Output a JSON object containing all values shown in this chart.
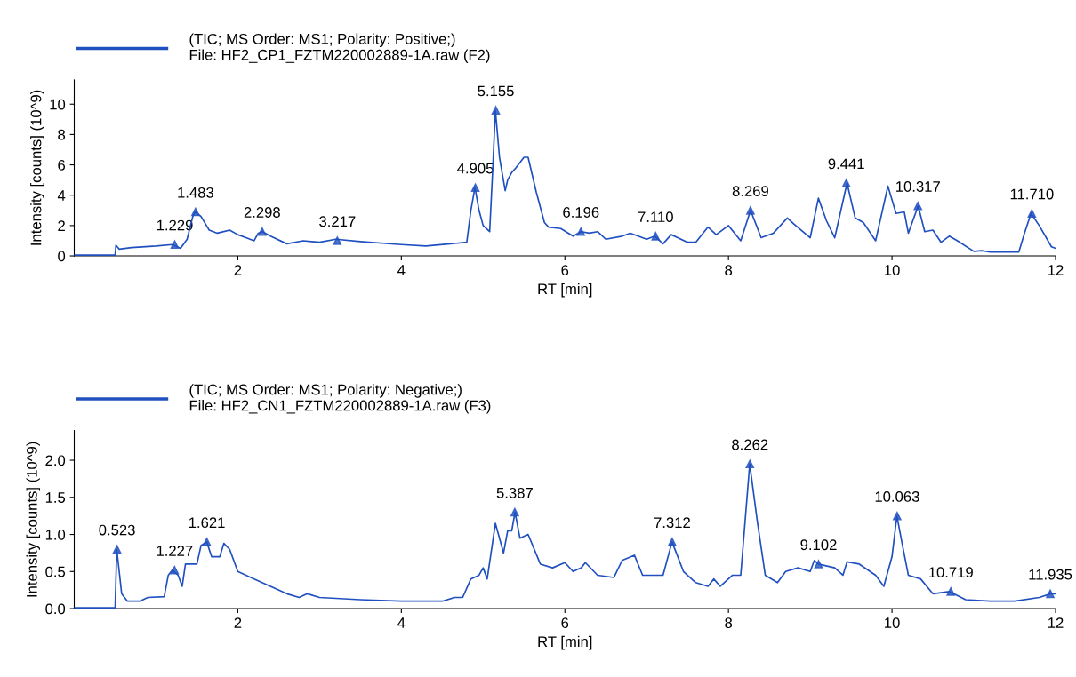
{
  "chart_data": [
    {
      "type": "line",
      "xlabel": "RT [min]",
      "ylabel": "Intensity [counts] (10^9)",
      "xlim": [
        0,
        12
      ],
      "xticks": [
        2,
        4,
        6,
        8,
        10,
        12
      ],
      "ylim": [
        0,
        11.6
      ],
      "yticks": [
        0,
        2,
        4,
        6,
        8,
        10
      ],
      "grid": false,
      "legend": "top left",
      "marker": "none",
      "line_style": "solid",
      "series": [
        {
          "name": "(TIC; MS Order: MS1; Polarity: Positive;)\nFile: HF2_CP1_FZTM220002889-1A.raw (F2)",
          "color": "#2050c0",
          "x": [
            0,
            0.5,
            0.51,
            0.55,
            0.7,
            1.0,
            1.2,
            1.3,
            1.38,
            1.45,
            1.48,
            1.55,
            1.65,
            1.75,
            1.9,
            2.0,
            2.1,
            2.2,
            2.25,
            2.3,
            2.4,
            2.6,
            2.8,
            2.9,
            3.0,
            3.2,
            3.5,
            4.0,
            4.3,
            4.6,
            4.8,
            4.85,
            4.9,
            4.95,
            5.0,
            5.08,
            5.12,
            5.15,
            5.2,
            5.27,
            5.3,
            5.35,
            5.4,
            5.5,
            5.55,
            5.65,
            5.75,
            5.8,
            5.95,
            6.1,
            6.2,
            6.3,
            6.4,
            6.5,
            6.7,
            6.8,
            7.0,
            7.1,
            7.2,
            7.3,
            7.5,
            7.6,
            7.75,
            7.85,
            8.0,
            8.15,
            8.27,
            8.4,
            8.55,
            8.72,
            8.8,
            9.0,
            9.1,
            9.2,
            9.3,
            9.45,
            9.55,
            9.65,
            9.8,
            9.95,
            10.05,
            10.15,
            10.2,
            10.32,
            10.4,
            10.5,
            10.6,
            10.7,
            10.8,
            11.0,
            11.1,
            11.2,
            11.55,
            11.62,
            11.7,
            11.8,
            11.95,
            12.0
          ],
          "values": [
            0.05,
            0.05,
            0.7,
            0.45,
            0.55,
            0.65,
            0.75,
            0.5,
            1.1,
            2.6,
            2.9,
            2.6,
            1.7,
            1.5,
            1.7,
            1.4,
            1.2,
            1.0,
            1.5,
            1.6,
            1.3,
            0.8,
            1.0,
            0.95,
            0.9,
            1.1,
            0.95,
            0.75,
            0.65,
            0.8,
            0.9,
            3.0,
            4.5,
            3.0,
            2.0,
            1.6,
            6.0,
            9.6,
            6.5,
            4.3,
            5.0,
            5.5,
            5.8,
            6.5,
            6.5,
            4.2,
            2.2,
            1.9,
            1.8,
            1.3,
            1.6,
            1.5,
            1.6,
            1.1,
            1.3,
            1.5,
            1.1,
            1.3,
            0.8,
            1.4,
            0.9,
            0.9,
            1.9,
            1.4,
            2.0,
            1.0,
            3.0,
            1.2,
            1.5,
            2.5,
            2.1,
            1.2,
            3.8,
            2.3,
            1.2,
            4.8,
            2.5,
            2.2,
            1.0,
            4.6,
            2.8,
            2.9,
            1.5,
            3.3,
            1.6,
            1.7,
            0.9,
            1.3,
            1.0,
            0.3,
            0.35,
            0.25,
            0.25,
            1.5,
            2.8,
            2.0,
            0.6,
            0.5
          ]
        }
      ],
      "annotations": [
        {
          "text": "1.229",
          "x": 1.229,
          "y": 0.75
        },
        {
          "text": "1.483",
          "x": 1.483,
          "y": 2.9
        },
        {
          "text": "2.298",
          "x": 2.298,
          "y": 1.6
        },
        {
          "text": "3.217",
          "x": 3.217,
          "y": 1.0
        },
        {
          "text": "4.905",
          "x": 4.905,
          "y": 4.5
        },
        {
          "text": "5.155",
          "x": 5.155,
          "y": 9.6
        },
        {
          "text": "6.196",
          "x": 6.196,
          "y": 1.6
        },
        {
          "text": "7.110",
          "x": 7.11,
          "y": 1.3
        },
        {
          "text": "8.269",
          "x": 8.269,
          "y": 3.0
        },
        {
          "text": "9.441",
          "x": 9.441,
          "y": 4.8
        },
        {
          "text": "10.317",
          "x": 10.317,
          "y": 3.3
        },
        {
          "text": "11.710",
          "x": 11.71,
          "y": 2.8
        }
      ]
    },
    {
      "type": "line",
      "xlabel": "RT [min]",
      "ylabel": "Intensity [counts] (10^9)",
      "xlim": [
        0,
        12
      ],
      "xticks": [
        2,
        4,
        6,
        8,
        10,
        12
      ],
      "ylim": [
        0,
        2.4
      ],
      "yticks": [
        {
          "value": 0,
          "label": "0.0"
        },
        0.5,
        {
          "value": 1,
          "label": "1.0"
        },
        1.5,
        {
          "value": 2,
          "label": "2.0"
        }
      ],
      "grid": false,
      "legend": "top left",
      "marker": "none",
      "line_style": "solid",
      "series": [
        {
          "name": "(TIC; MS Order: MS1; Polarity: Negative;)\nFile: HF2_CN1_FZTM220002889-1A.raw (F3)",
          "color": "#2050c0",
          "x": [
            0,
            0.5,
            0.52,
            0.58,
            0.65,
            0.8,
            0.9,
            1.1,
            1.15,
            1.2,
            1.27,
            1.32,
            1.36,
            1.5,
            1.55,
            1.62,
            1.68,
            1.78,
            1.83,
            1.9,
            2.0,
            2.2,
            2.4,
            2.6,
            2.75,
            2.85,
            3.0,
            3.5,
            4.0,
            4.5,
            4.65,
            4.75,
            4.85,
            4.95,
            5.0,
            5.05,
            5.15,
            5.25,
            5.3,
            5.35,
            5.39,
            5.45,
            5.55,
            5.7,
            5.85,
            6.0,
            6.1,
            6.2,
            6.25,
            6.4,
            6.6,
            6.7,
            6.85,
            6.95,
            7.1,
            7.2,
            7.31,
            7.45,
            7.6,
            7.75,
            7.82,
            7.9,
            8.05,
            8.15,
            8.26,
            8.35,
            8.45,
            8.6,
            8.7,
            8.85,
            9.0,
            9.05,
            9.1,
            9.3,
            9.4,
            9.45,
            9.6,
            9.8,
            9.9,
            10.0,
            10.06,
            10.12,
            10.2,
            10.35,
            10.5,
            10.7,
            10.9,
            11.2,
            11.5,
            11.8,
            11.94,
            12.0
          ],
          "values": [
            0.01,
            0.01,
            0.8,
            0.2,
            0.1,
            0.1,
            0.15,
            0.16,
            0.45,
            0.52,
            0.45,
            0.3,
            0.6,
            0.6,
            0.85,
            0.9,
            0.7,
            0.7,
            0.88,
            0.8,
            0.5,
            0.4,
            0.3,
            0.2,
            0.15,
            0.2,
            0.15,
            0.12,
            0.1,
            0.1,
            0.15,
            0.15,
            0.4,
            0.45,
            0.55,
            0.4,
            1.15,
            0.75,
            1.05,
            1.05,
            1.3,
            0.95,
            1.0,
            0.6,
            0.55,
            0.62,
            0.5,
            0.55,
            0.62,
            0.45,
            0.42,
            0.65,
            0.72,
            0.45,
            0.45,
            0.45,
            0.9,
            0.5,
            0.35,
            0.3,
            0.4,
            0.3,
            0.45,
            0.45,
            1.95,
            1.2,
            0.45,
            0.35,
            0.5,
            0.55,
            0.5,
            0.65,
            0.6,
            0.55,
            0.45,
            0.63,
            0.6,
            0.45,
            0.3,
            0.7,
            1.25,
            0.9,
            0.45,
            0.4,
            0.2,
            0.23,
            0.12,
            0.1,
            0.1,
            0.15,
            0.2,
            0.2
          ]
        }
      ],
      "annotations": [
        {
          "text": "0.523",
          "x": 0.523,
          "y": 0.8
        },
        {
          "text": "1.227",
          "x": 1.227,
          "y": 0.52
        },
        {
          "text": "1.621",
          "x": 1.621,
          "y": 0.9
        },
        {
          "text": "5.387",
          "x": 5.387,
          "y": 1.3
        },
        {
          "text": "7.312",
          "x": 7.312,
          "y": 0.9
        },
        {
          "text": "8.262",
          "x": 8.262,
          "y": 1.95
        },
        {
          "text": "9.102",
          "x": 9.102,
          "y": 0.6
        },
        {
          "text": "10.063",
          "x": 10.063,
          "y": 1.25
        },
        {
          "text": "10.719",
          "x": 10.719,
          "y": 0.23
        },
        {
          "text": "11.935",
          "x": 11.935,
          "y": 0.2
        }
      ]
    }
  ]
}
